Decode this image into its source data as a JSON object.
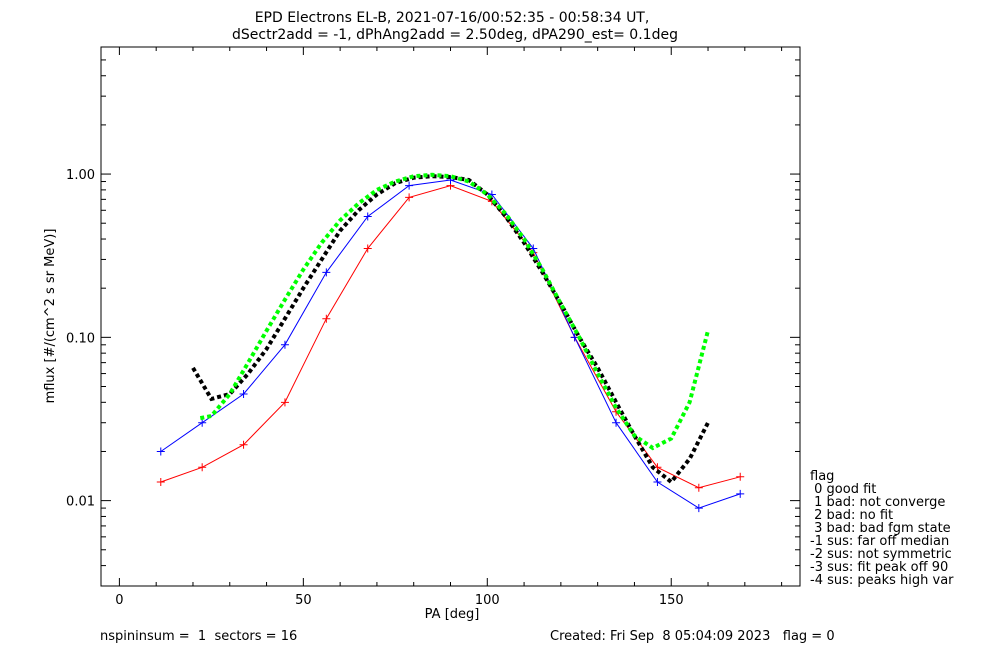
{
  "title": {
    "line1": "EPD Electrons EL-B, 2021-07-16/00:52:35 - 00:58:34 UT,",
    "line2": "dSectr2add = -1, dPhAng2add = 2.50deg, dPA290_est=   0.1deg"
  },
  "footer": {
    "left": "nspininsum =  1  sectors = 16",
    "right": "Created: Fri Sep  8 05:04:09 2023   flag = 0"
  },
  "legend": {
    "title": "flag",
    "items": [
      " 0 good fit",
      " 1 bad: not converge",
      " 2 bad: no fit",
      " 3 bad: bad fgm state",
      "-1 sus: far off median",
      "-2 sus: not symmetric",
      "-3 sus: fit peak off 90",
      "-4 sus: peaks high var"
    ]
  },
  "colors": {
    "series_a": "#ff0000",
    "series_b": "#0000ff",
    "median": "#000000",
    "fit": "#00ff00"
  },
  "chart_data": {
    "type": "line",
    "xlabel": "PA [deg]",
    "ylabel": "mflux [#/(cm^2 s sr MeV)]",
    "xlim": [
      -5,
      185
    ],
    "ylim": [
      0.003,
      6
    ],
    "yscale": "log",
    "xticks": [
      0,
      50,
      100,
      150
    ],
    "xtick_labels": [
      "0",
      "50",
      "100",
      "150"
    ],
    "yticks": [
      0.01,
      0.1,
      1.0
    ],
    "ytick_labels": [
      "0.01",
      "0.10",
      "1.00"
    ],
    "median_curve": {
      "x": [
        20,
        25,
        30,
        35,
        40,
        45,
        50,
        55,
        60,
        65,
        70,
        75,
        80,
        85,
        90,
        95,
        100,
        105,
        110,
        115,
        120,
        125,
        130,
        135,
        140,
        145,
        150,
        155,
        160
      ],
      "y": [
        0.065,
        0.042,
        0.045,
        0.06,
        0.085,
        0.13,
        0.2,
        0.3,
        0.45,
        0.6,
        0.75,
        0.88,
        0.95,
        0.97,
        0.96,
        0.92,
        0.75,
        0.55,
        0.38,
        0.25,
        0.16,
        0.1,
        0.065,
        0.04,
        0.025,
        0.016,
        0.013,
        0.018,
        0.03
      ]
    },
    "fit_curve": {
      "x": [
        22,
        25,
        30,
        35,
        40,
        45,
        50,
        55,
        60,
        65,
        70,
        75,
        80,
        85,
        90,
        95,
        100,
        105,
        110,
        115,
        120,
        125,
        130,
        135,
        140,
        145,
        150,
        155,
        160
      ],
      "y": [
        0.032,
        0.033,
        0.045,
        0.07,
        0.11,
        0.17,
        0.26,
        0.38,
        0.52,
        0.66,
        0.8,
        0.9,
        0.97,
        0.99,
        0.97,
        0.9,
        0.75,
        0.57,
        0.4,
        0.26,
        0.16,
        0.1,
        0.06,
        0.037,
        0.025,
        0.021,
        0.024,
        0.04,
        0.11
      ]
    },
    "series": [
      {
        "color": "red",
        "x": [
          11.25,
          22.5,
          33.75,
          45,
          56.25,
          67.5,
          78.75,
          90,
          101.25,
          112.5,
          123.75,
          135,
          146.25,
          157.5,
          168.75
        ],
        "y": [
          0.013,
          0.016,
          0.022,
          0.04,
          0.13,
          0.35,
          0.72,
          0.85,
          0.68,
          0.33,
          0.1,
          0.035,
          0.016,
          0.012,
          0.014
        ]
      },
      {
        "color": "blue",
        "x": [
          11.25,
          22.5,
          33.75,
          45,
          56.25,
          67.5,
          78.75,
          90,
          101.25,
          112.5,
          123.75,
          135,
          146.25,
          157.5,
          168.75
        ],
        "y": [
          0.02,
          0.03,
          0.045,
          0.09,
          0.25,
          0.55,
          0.85,
          0.92,
          0.75,
          0.35,
          0.1,
          0.03,
          0.013,
          0.009,
          0.011
        ]
      }
    ]
  }
}
